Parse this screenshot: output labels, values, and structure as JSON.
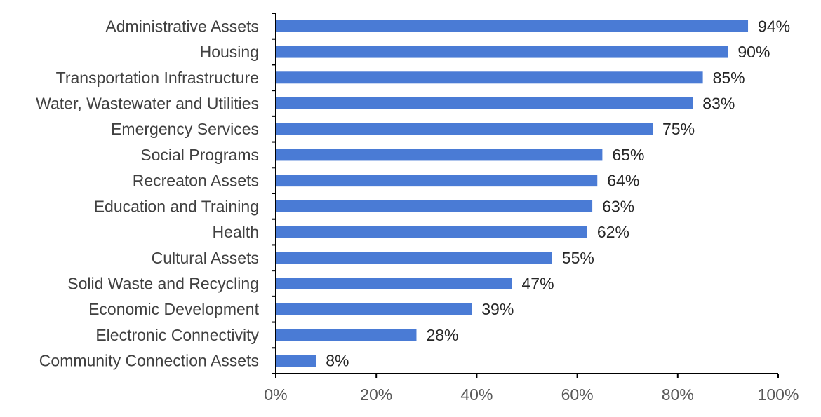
{
  "chart_data": {
    "type": "bar",
    "orientation": "horizontal",
    "title": "",
    "xlabel": "",
    "ylabel": "",
    "categories": [
      "Administrative Assets",
      "Housing",
      "Transportation Infrastructure",
      "Water, Wastewater and Utilities",
      "Emergency Services",
      "Social Programs",
      "Recreaton Assets",
      "Education and Training",
      "Health",
      "Cultural Assets",
      "Solid Waste and Recycling",
      "Economic Development",
      "Electronic Connectivity",
      "Community Connection Assets"
    ],
    "values": [
      94,
      90,
      85,
      83,
      75,
      65,
      64,
      63,
      62,
      55,
      47,
      39,
      28,
      8
    ],
    "value_labels": [
      "94%",
      "90%",
      "85%",
      "83%",
      "75%",
      "65%",
      "64%",
      "63%",
      "62%",
      "55%",
      "47%",
      "39%",
      "28%",
      "8%"
    ],
    "xlim": [
      0,
      100
    ],
    "x_ticks": [
      0,
      20,
      40,
      60,
      80,
      100
    ],
    "x_tick_labels": [
      "0%",
      "20%",
      "40%",
      "60%",
      "80%",
      "100%"
    ],
    "grid": false,
    "legend": "none",
    "bar_color": "#4a7bd5"
  }
}
